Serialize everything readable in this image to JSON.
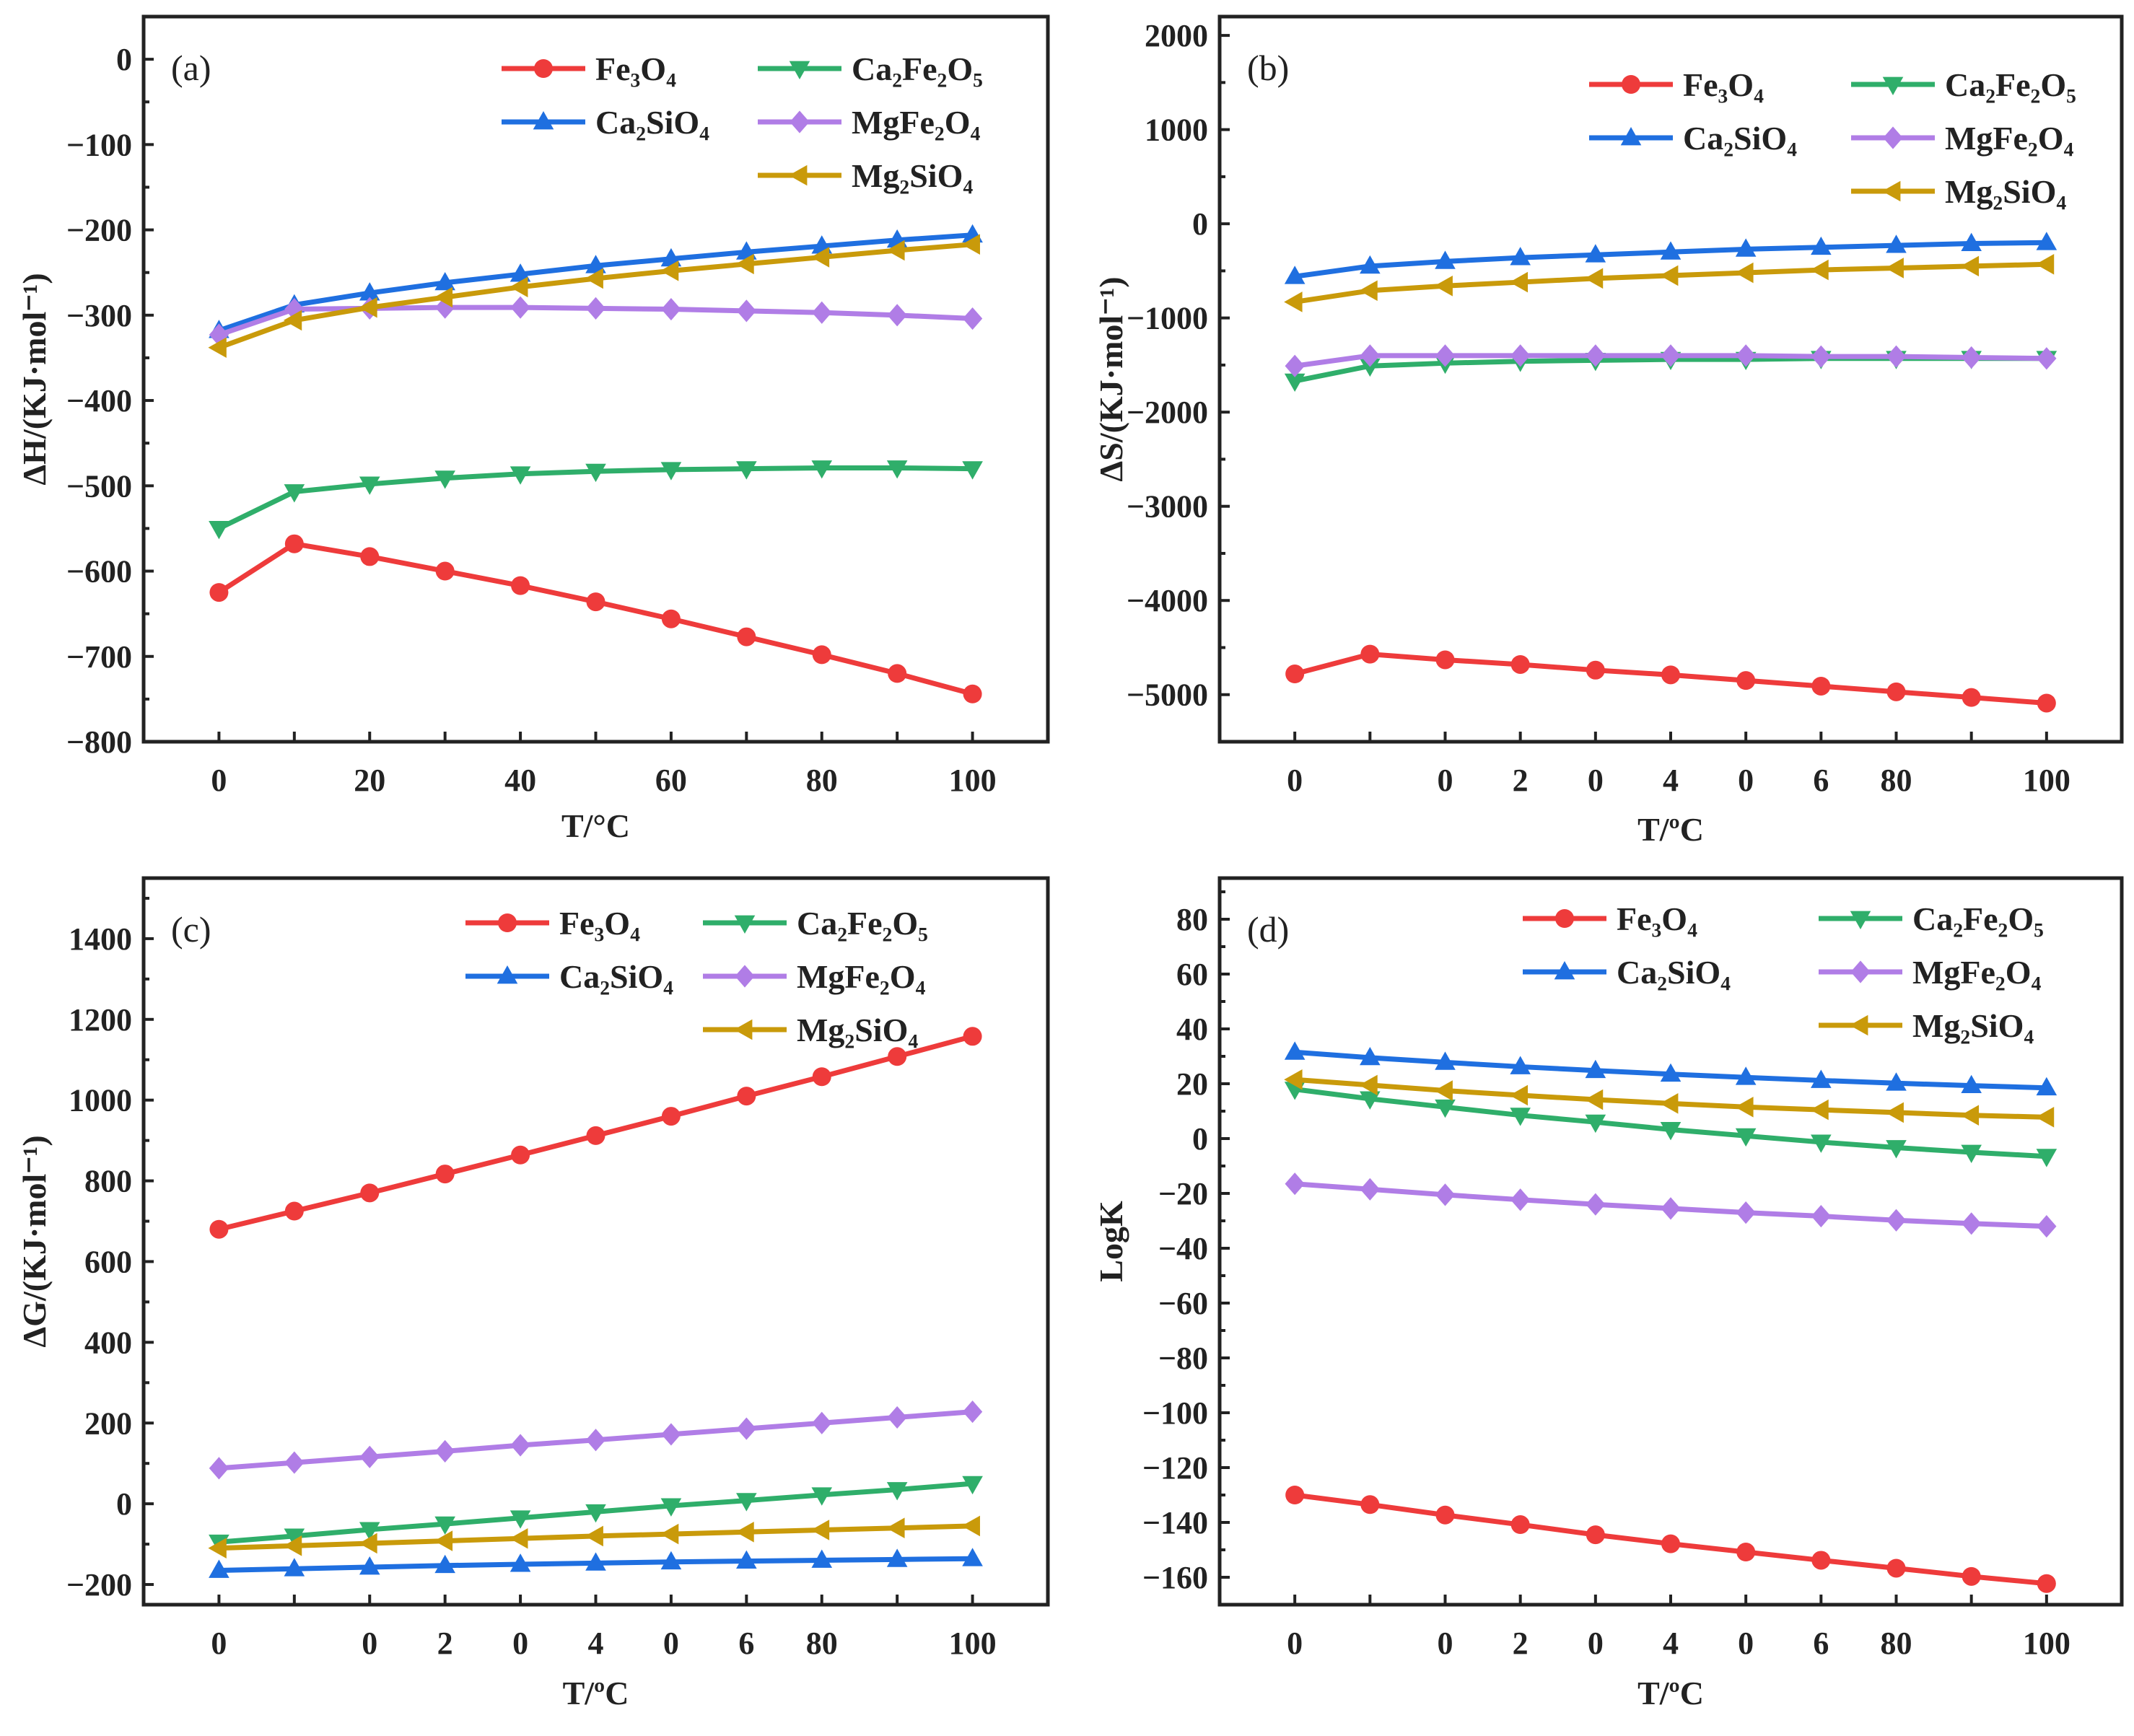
{
  "chart_data": [
    {
      "type": "line",
      "panel_label": "(a)",
      "xlabel": "T/°C",
      "ylabel": "ΔH/(KJ·mol⁻¹)",
      "xlim": [
        -10,
        110
      ],
      "ylim": [
        -800,
        50
      ],
      "x_ticks": [
        {
          "value": 0,
          "label": "0"
        },
        {
          "value": 20,
          "label": "20"
        },
        {
          "value": 40,
          "label": "40"
        },
        {
          "value": 60,
          "label": "60"
        },
        {
          "value": 80,
          "label": "80"
        },
        {
          "value": 100,
          "label": "100"
        }
      ],
      "y_ticks": [
        0,
        -100,
        -200,
        -300,
        -400,
        -500,
        -600,
        -700,
        -800
      ],
      "y_tick_labels": [
        "0",
        "−100",
        "−200",
        "−300",
        "−400",
        "−500",
        "−600",
        "−700",
        "−800"
      ],
      "y_minor_step": 50,
      "x": [
        0,
        10,
        20,
        30,
        40,
        50,
        60,
        70,
        80,
        90,
        100
      ],
      "series": [
        {
          "name": "Fe₃O₄",
          "color": "#ee3b3b",
          "marker": "circle",
          "values": [
            -625,
            -568,
            -583,
            -600,
            -617,
            -636,
            -656,
            -677,
            -698,
            -720,
            -744
          ]
        },
        {
          "name": "Ca₂SiO₄",
          "color": "#1f6fe0",
          "marker": "triangle-up",
          "values": [
            -318,
            -288,
            -274,
            -262,
            -252,
            -242,
            -234,
            -226,
            -219,
            -212,
            -206
          ]
        },
        {
          "name": "Ca₂Fe₂O₅",
          "color": "#2fae6a",
          "marker": "triangle-down",
          "values": [
            -550,
            -507,
            -498,
            -491,
            -486,
            -483,
            -481,
            -480,
            -479,
            -479,
            -480
          ]
        },
        {
          "name": "MgFe₂O₄",
          "color": "#b07de6",
          "marker": "diamond",
          "values": [
            -323,
            -293,
            -292,
            -291,
            -291,
            -292,
            -293,
            -295,
            -297,
            -300,
            -304
          ]
        },
        {
          "name": "Mg₂SiO₄",
          "color": "#c99a0a",
          "marker": "triangle-left",
          "values": [
            -338,
            -306,
            -291,
            -279,
            -267,
            -257,
            -248,
            -240,
            -232,
            -224,
            -217
          ]
        }
      ]
    },
    {
      "type": "line",
      "panel_label": "(b)",
      "xlabel": "T/ºC",
      "ylabel": "ΔS/(KJ·mol⁻¹)",
      "xlim": [
        -10,
        110
      ],
      "ylim": [
        -5500,
        2200
      ],
      "x_ticks": [
        {
          "value": 0,
          "label": "0"
        },
        {
          "value": 20,
          "label": "0"
        },
        {
          "value": 30,
          "label": "2"
        },
        {
          "value": 40,
          "label": "0"
        },
        {
          "value": 50,
          "label": "4"
        },
        {
          "value": 60,
          "label": "0"
        },
        {
          "value": 70,
          "label": "6"
        },
        {
          "value": 80,
          "label": "80"
        },
        {
          "value": 100,
          "label": "100"
        }
      ],
      "y_ticks": [
        2000,
        1000,
        0,
        -1000,
        -2000,
        -3000,
        -4000,
        -5000
      ],
      "y_tick_labels": [
        "2000",
        "1000",
        "0",
        "−1000",
        "−2000",
        "−3000",
        "−4000",
        "−5000"
      ],
      "y_minor_step": 500,
      "x": [
        0,
        10,
        20,
        30,
        40,
        50,
        60,
        70,
        80,
        90,
        100
      ],
      "series": [
        {
          "name": "Fe₃O₄",
          "color": "#ee3b3b",
          "marker": "circle",
          "values": [
            -4780,
            -4570,
            -4630,
            -4680,
            -4740,
            -4790,
            -4850,
            -4910,
            -4970,
            -5030,
            -5090
          ]
        },
        {
          "name": "Ca₂SiO₄",
          "color": "#1f6fe0",
          "marker": "triangle-up",
          "values": [
            -560,
            -450,
            -400,
            -360,
            -330,
            -300,
            -270,
            -250,
            -230,
            -210,
            -200
          ]
        },
        {
          "name": "Ca₂Fe₂O₅",
          "color": "#2fae6a",
          "marker": "triangle-down",
          "values": [
            -1670,
            -1510,
            -1480,
            -1460,
            -1450,
            -1440,
            -1440,
            -1430,
            -1430,
            -1430,
            -1430
          ]
        },
        {
          "name": "MgFe₂O₄",
          "color": "#b07de6",
          "marker": "diamond",
          "values": [
            -1510,
            -1400,
            -1400,
            -1400,
            -1400,
            -1400,
            -1400,
            -1410,
            -1410,
            -1420,
            -1430
          ]
        },
        {
          "name": "Mg₂SiO₄",
          "color": "#c99a0a",
          "marker": "triangle-left",
          "values": [
            -830,
            -710,
            -660,
            -620,
            -580,
            -550,
            -520,
            -490,
            -470,
            -450,
            -430
          ]
        }
      ]
    },
    {
      "type": "line",
      "panel_label": "(c)",
      "xlabel": "T/ºC",
      "ylabel": "ΔG/(KJ·mol⁻¹)",
      "xlim": [
        -10,
        110
      ],
      "ylim": [
        -250,
        1550
      ],
      "x_ticks": [
        {
          "value": 0,
          "label": "0"
        },
        {
          "value": 20,
          "label": "0"
        },
        {
          "value": 30,
          "label": "2"
        },
        {
          "value": 40,
          "label": "0"
        },
        {
          "value": 50,
          "label": "4"
        },
        {
          "value": 60,
          "label": "0"
        },
        {
          "value": 70,
          "label": "6"
        },
        {
          "value": 80,
          "label": "80"
        },
        {
          "value": 100,
          "label": "100"
        }
      ],
      "y_ticks": [
        1400,
        1200,
        1000,
        800,
        600,
        400,
        200,
        0,
        -200
      ],
      "y_tick_labels": [
        "1400",
        "1200",
        "1000",
        "800",
        "600",
        "400",
        "200",
        "0",
        "−200"
      ],
      "y_minor_step": 100,
      "x": [
        0,
        10,
        20,
        30,
        40,
        50,
        60,
        70,
        80,
        90,
        100
      ],
      "series": [
        {
          "name": "Fe₃O₄",
          "color": "#ee3b3b",
          "marker": "circle",
          "values": [
            680,
            725,
            770,
            817,
            864,
            912,
            960,
            1010,
            1058,
            1108,
            1158
          ]
        },
        {
          "name": "Ca₂SiO₄",
          "color": "#1f6fe0",
          "marker": "triangle-up",
          "values": [
            -165,
            -161,
            -157,
            -153,
            -150,
            -147,
            -144,
            -142,
            -140,
            -138,
            -136
          ]
        },
        {
          "name": "Ca₂Fe₂O₅",
          "color": "#2fae6a",
          "marker": "triangle-down",
          "values": [
            -95,
            -80,
            -64,
            -50,
            -35,
            -20,
            -5,
            8,
            22,
            35,
            50
          ]
        },
        {
          "name": "MgFe₂O₄",
          "color": "#b07de6",
          "marker": "diamond",
          "values": [
            88,
            102,
            116,
            130,
            145,
            158,
            172,
            186,
            200,
            214,
            228
          ]
        },
        {
          "name": "Mg₂SiO₄",
          "color": "#c99a0a",
          "marker": "triangle-left",
          "values": [
            -110,
            -104,
            -98,
            -92,
            -86,
            -80,
            -75,
            -70,
            -65,
            -60,
            -55
          ]
        }
      ]
    },
    {
      "type": "line",
      "panel_label": "(d)",
      "xlabel": "T/ºC",
      "ylabel": "LogK",
      "xlim": [
        -10,
        110
      ],
      "ylim": [
        -170,
        95
      ],
      "x_ticks": [
        {
          "value": 0,
          "label": "0"
        },
        {
          "value": 20,
          "label": "0"
        },
        {
          "value": 30,
          "label": "2"
        },
        {
          "value": 40,
          "label": "0"
        },
        {
          "value": 50,
          "label": "4"
        },
        {
          "value": 60,
          "label": "0"
        },
        {
          "value": 70,
          "label": "6"
        },
        {
          "value": 80,
          "label": "80"
        },
        {
          "value": 100,
          "label": "100"
        }
      ],
      "y_ticks": [
        80,
        60,
        40,
        20,
        0,
        -20,
        -40,
        -60,
        -80,
        -100,
        -120,
        -140,
        -160
      ],
      "y_tick_labels": [
        "80",
        "60",
        "40",
        "20",
        "0",
        "−20",
        "−40",
        "−60",
        "−80",
        "−100",
        "−120",
        "−140",
        "−160"
      ],
      "y_minor_step": 10,
      "x": [
        0,
        10,
        20,
        30,
        40,
        50,
        60,
        70,
        80,
        90,
        100
      ],
      "series": [
        {
          "name": "Fe₃O₄",
          "color": "#ee3b3b",
          "marker": "circle",
          "values": [
            -130,
            -133.5,
            -137.3,
            -140.8,
            -144.5,
            -147.8,
            -150.8,
            -153.8,
            -156.7,
            -159.7,
            -162.3
          ]
        },
        {
          "name": "Ca₂SiO₄",
          "color": "#1f6fe0",
          "marker": "triangle-up",
          "values": [
            31.5,
            29.5,
            27.8,
            26.2,
            24.8,
            23.5,
            22.3,
            21.2,
            20.2,
            19.3,
            18.5
          ]
        },
        {
          "name": "Ca₂Fe₂O₅",
          "color": "#2fae6a",
          "marker": "triangle-down",
          "values": [
            18,
            14.5,
            11.5,
            8.5,
            6,
            3.3,
            1,
            -1.3,
            -3.3,
            -5,
            -6.5
          ]
        },
        {
          "name": "MgFe₂O₄",
          "color": "#b07de6",
          "marker": "diamond",
          "values": [
            -16.5,
            -18.5,
            -20.5,
            -22.3,
            -24,
            -25.5,
            -27,
            -28.3,
            -29.8,
            -31,
            -32
          ]
        },
        {
          "name": "Mg₂SiO₄",
          "color": "#c99a0a",
          "marker": "triangle-left",
          "values": [
            21.5,
            19.5,
            17.5,
            15.8,
            14.2,
            12.8,
            11.5,
            10.5,
            9.5,
            8.5,
            7.8
          ]
        }
      ]
    }
  ]
}
